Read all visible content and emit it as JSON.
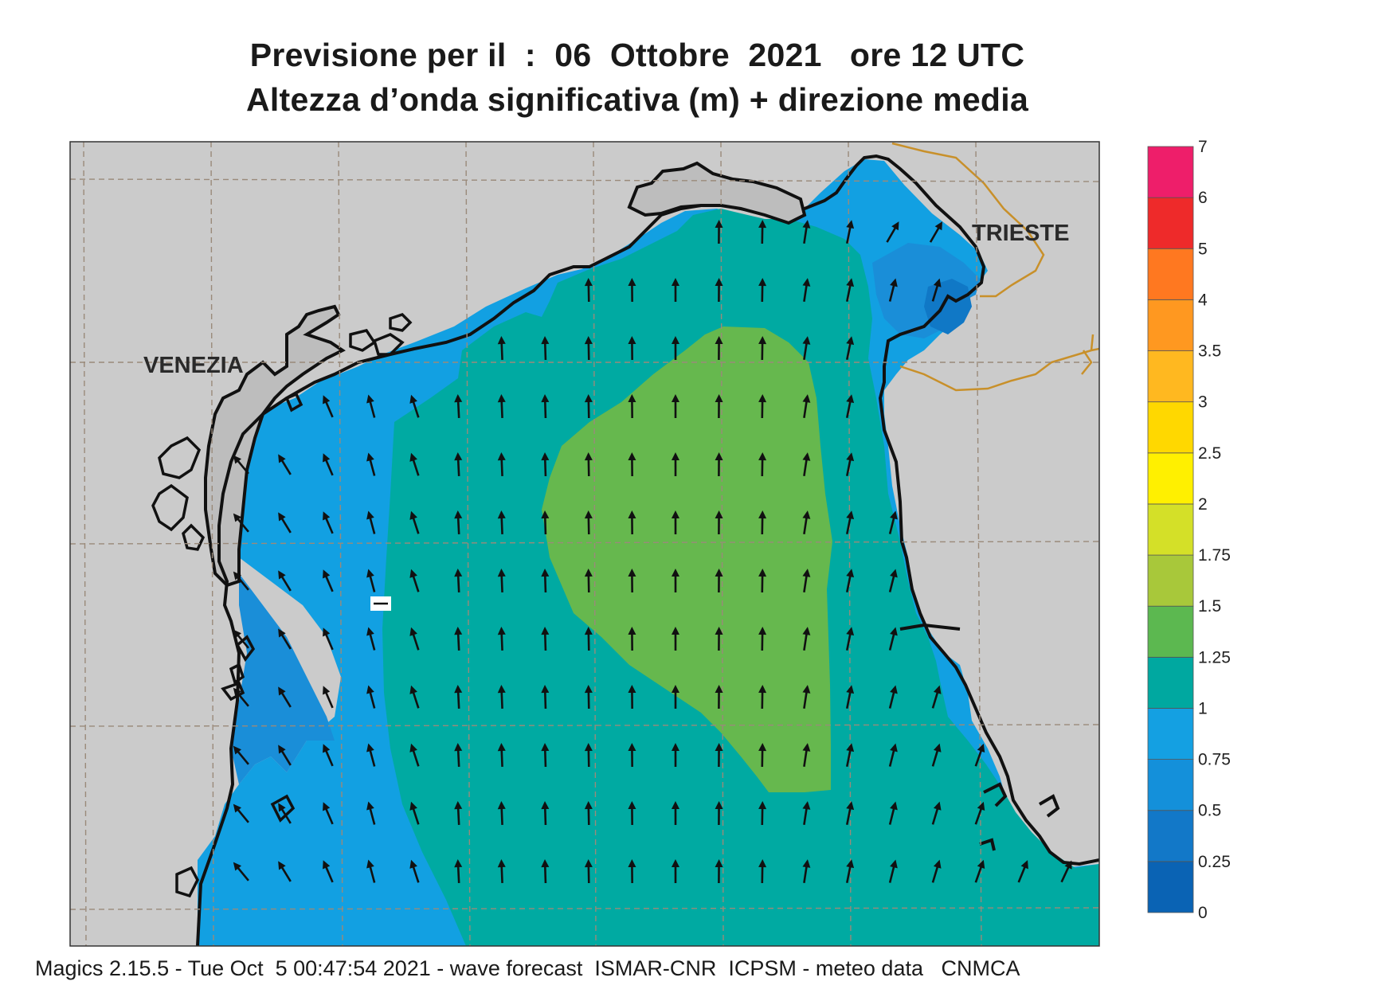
{
  "title": {
    "line1": "Previsione per il  :  06  Ottobre  2021   ore 12 UTC",
    "line2": "Altezza d’onda significativa (m) + direzione media"
  },
  "cities": {
    "venezia": "VENEZIA",
    "trieste": "TRIESTE"
  },
  "footer": "Magics 2.15.5 - Tue Oct  5 00:47:54 2021 - wave forecast  ISMAR-CNR  ICPSM - meteo data   CNMCA",
  "colorbar": {
    "levels": [
      "0",
      "0.25",
      "0.5",
      "0.75",
      "1",
      "1.25",
      "1.5",
      "1.75",
      "2",
      "2.5",
      "3",
      "3.5",
      "4",
      "5",
      "6",
      "7"
    ],
    "colors": [
      "#0a63b4",
      "#1278c8",
      "#1490da",
      "#14a0e2",
      "#00a8a0",
      "#5cb850",
      "#a8c83a",
      "#d4e028",
      "#fff000",
      "#ffd800",
      "#ffb820",
      "#ff9820",
      "#ff7820",
      "#ee2a2a",
      "#ee1e6a"
    ]
  },
  "colors": {
    "land": "#cbcbcb",
    "sea_0_75_1": "#12a0e2",
    "sea_0_5_0_75": "#1a8ed8",
    "sea_0_25_0_5": "#1078c6",
    "sea_1_1_25": "#00aaa2",
    "sea_1_25_1_5": "#66b84e",
    "coast": "#111111",
    "border": "#c8902a",
    "grid": "#9a8a7a"
  },
  "icons": [
    "wave-direction-arrow-icon"
  ]
}
